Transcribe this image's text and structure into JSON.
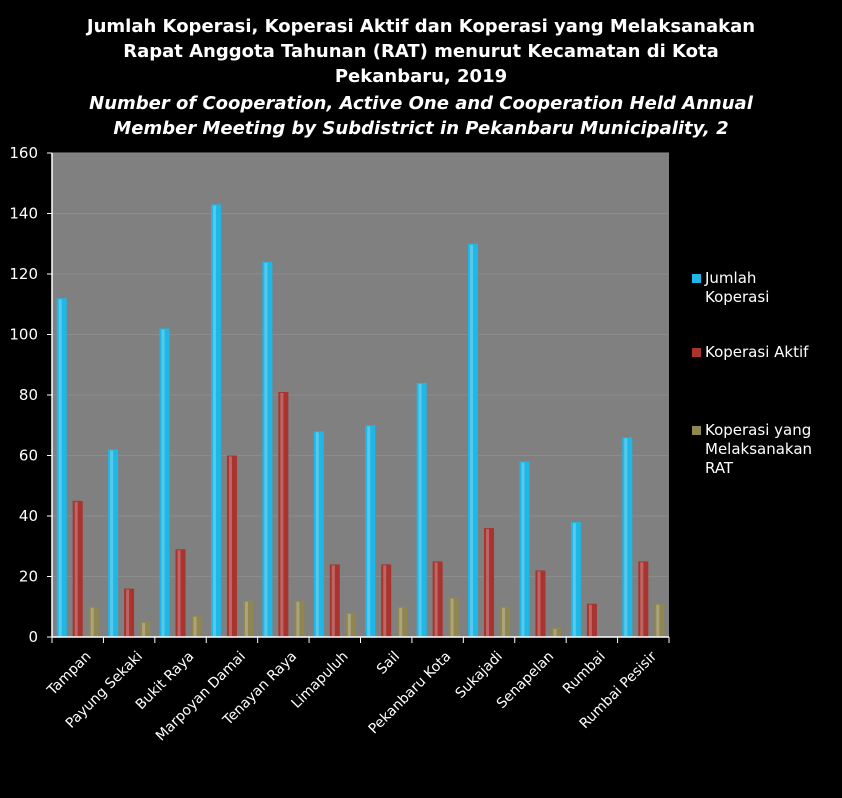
{
  "chart_data": {
    "type": "bar",
    "title_lines": [
      "Jumlah Koperasi, Koperasi Aktif dan Koperasi yang Melaksanakan",
      "Rapat Anggota Tahunan (RAT) menurut Kecamatan di Kota",
      "Pekanbaru, 2019"
    ],
    "subtitle_lines": [
      "Number of Cooperation, Active One and Cooperation Held Annual",
      "Member Meeting by Subdistrict in Pekanbaru Municipality, 2"
    ],
    "categories": [
      "Tampan",
      "Payung Sekaki",
      "Bukit Raya",
      "Marpoyan Damai",
      "Tenayan Raya",
      "Limapuluh",
      "Sail",
      "Pekanbaru Kota",
      "Sukajadi",
      "Senapelan",
      "Rumbai",
      "Rumbai Pesisir"
    ],
    "series": [
      {
        "name": "Jumlah Koperasi",
        "legend_lines": [
          "Jumlah",
          "Koperasi"
        ],
        "color": "#1fb7e6",
        "values": [
          112,
          62,
          102,
          143,
          124,
          68,
          70,
          84,
          130,
          58,
          38,
          66
        ]
      },
      {
        "name": "Koperasi Aktif",
        "legend_lines": [
          "Koperasi Aktif"
        ],
        "color": "#a8332f",
        "values": [
          45,
          16,
          29,
          60,
          81,
          24,
          24,
          25,
          36,
          22,
          11,
          25
        ]
      },
      {
        "name": "Koperasi yang Melaksanakan RAT",
        "legend_lines": [
          "Koperasi yang",
          "Melaksanakan",
          "RAT"
        ],
        "color": "#8f8650",
        "values": [
          10,
          5,
          7,
          12,
          12,
          8,
          10,
          13,
          10,
          3,
          0,
          11
        ]
      }
    ],
    "ylim": [
      0,
      160
    ],
    "yticks": [
      0,
      20,
      40,
      60,
      80,
      100,
      120,
      140,
      160
    ],
    "grid": true,
    "legend_position": "right",
    "plot_background": "#808080",
    "grid_color": "#8c8c8c"
  }
}
